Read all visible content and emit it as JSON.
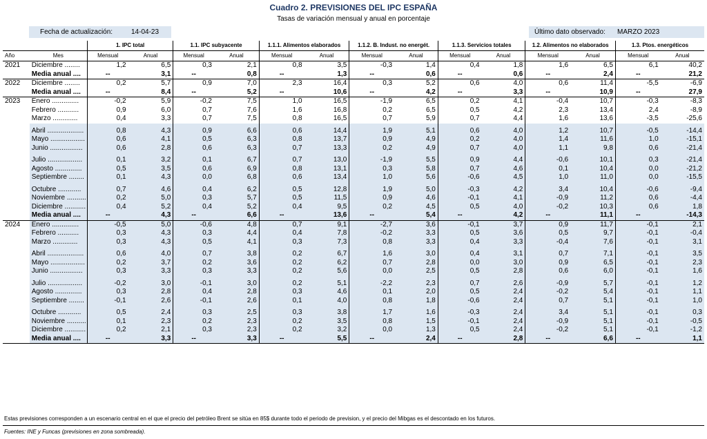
{
  "title": "Cuadro 2. PREVISIONES DEL IPC ESPAÑA",
  "subtitle": "Tasas de variación mensual y anual en porcentaje",
  "update_label": "Fecha de actualización:",
  "update_date": "14-04-23",
  "last_label": "Último dato observado:",
  "last_value": "MARZO 2023",
  "col_year": "Año",
  "col_month": "Mes",
  "sub_mensual": "Mensual",
  "sub_anual": "Anual",
  "groups": [
    "1. IPC total",
    "1.1. IPC subyacente",
    "1.1.1. Alimentos elaborados",
    "1.1.2. B. Indust. no energét.",
    "1.1.3. Servicios totales",
    "1.2. Alimentos no elaborados",
    "1.3. Ptos. energéticos"
  ],
  "blocks": [
    {
      "year": "2021",
      "shade": false,
      "rows": [
        {
          "m": "Diciembre ........",
          "v": [
            "1,2",
            "6,5",
            "0,3",
            "2,1",
            "0,8",
            "3,5",
            "-0,3",
            "1,4",
            "0,4",
            "1,8",
            "1,6",
            "6,5",
            "6,1",
            "40,2"
          ]
        },
        {
          "m": "Media anual ....",
          "bold": true,
          "v": [
            "--",
            "3,1",
            "--",
            "0,8",
            "--",
            "1,3",
            "--",
            "0,6",
            "--",
            "0,6",
            "--",
            "2,4",
            "--",
            "21,2"
          ]
        }
      ]
    },
    {
      "year": "2022",
      "shade": false,
      "rows": [
        {
          "m": "Diciembre ........",
          "v": [
            "0,2",
            "5,7",
            "0,9",
            "7,0",
            "2,3",
            "16,4",
            "0,3",
            "5,2",
            "0,6",
            "4,0",
            "0,6",
            "11,4",
            "-5,5",
            "-6,9"
          ]
        },
        {
          "m": "Media anual ....",
          "bold": true,
          "v": [
            "--",
            "8,4",
            "--",
            "5,2",
            "--",
            "10,6",
            "--",
            "4,2",
            "--",
            "3,3",
            "--",
            "10,9",
            "--",
            "27,9"
          ]
        }
      ]
    },
    {
      "year": "2023",
      "rows": [
        {
          "m": "Enero ..............",
          "v": [
            "-0,2",
            "5,9",
            "-0,2",
            "7,5",
            "1,0",
            "16,5",
            "-1,9",
            "6,5",
            "0,2",
            "4,1",
            "-0,4",
            "10,7",
            "-0,3",
            "-8,3"
          ]
        },
        {
          "m": "Febrero ...........",
          "v": [
            "0,9",
            "6,0",
            "0,7",
            "7,6",
            "1,6",
            "16,8",
            "0,2",
            "6,5",
            "0,5",
            "4,2",
            "2,3",
            "13,4",
            "2,4",
            "-8,9"
          ]
        },
        {
          "m": "Marzo .............",
          "v": [
            "0,4",
            "3,3",
            "0,7",
            "7,5",
            "0,8",
            "16,5",
            "0,7",
            "5,9",
            "0,7",
            "4,4",
            "1,6",
            "13,6",
            "-3,5",
            "-25,6"
          ]
        },
        {
          "gap": true,
          "shade": true
        },
        {
          "m": "Abril ...................",
          "shade": true,
          "v": [
            "0,8",
            "4,3",
            "0,9",
            "6,6",
            "0,6",
            "14,4",
            "1,9",
            "5,1",
            "0,6",
            "4,0",
            "1,2",
            "10,7",
            "-0,5",
            "-14,4"
          ]
        },
        {
          "m": "Mayo ..................",
          "shade": true,
          "v": [
            "0,6",
            "4,1",
            "0,5",
            "6,3",
            "0,8",
            "13,7",
            "0,9",
            "4,9",
            "0,2",
            "4,0",
            "1,4",
            "11,6",
            "1,0",
            "-15,1"
          ]
        },
        {
          "m": "Junio .................",
          "shade": true,
          "v": [
            "0,6",
            "2,8",
            "0,6",
            "6,3",
            "0,7",
            "13,3",
            "0,2",
            "4,9",
            "0,7",
            "4,0",
            "1,1",
            "9,8",
            "0,6",
            "-21,4"
          ]
        },
        {
          "gap": true,
          "shade": true
        },
        {
          "m": "Julio ..................",
          "shade": true,
          "v": [
            "0,1",
            "3,2",
            "0,1",
            "6,7",
            "0,7",
            "13,0",
            "-1,9",
            "5,5",
            "0,9",
            "4,4",
            "-0,6",
            "10,1",
            "0,3",
            "-21,4"
          ]
        },
        {
          "m": "Agosto ..............",
          "shade": true,
          "v": [
            "0,5",
            "3,5",
            "0,6",
            "6,9",
            "0,8",
            "13,1",
            "0,3",
            "5,8",
            "0,7",
            "4,6",
            "0,1",
            "10,4",
            "0,0",
            "-21,2"
          ]
        },
        {
          "m": "Septiembre ........",
          "shade": true,
          "v": [
            "0,1",
            "4,3",
            "0,0",
            "6,8",
            "0,6",
            "13,4",
            "1,0",
            "5,6",
            "-0,6",
            "4,5",
            "1,0",
            "11,0",
            "0,0",
            "-15,5"
          ]
        },
        {
          "gap": true,
          "shade": true
        },
        {
          "m": "Octubre ............",
          "shade": true,
          "v": [
            "0,7",
            "4,6",
            "0,4",
            "6,2",
            "0,5",
            "12,8",
            "1,9",
            "5,0",
            "-0,3",
            "4,2",
            "3,4",
            "10,4",
            "-0,6",
            "-9,4"
          ]
        },
        {
          "m": "Noviembre ..........",
          "shade": true,
          "v": [
            "0,2",
            "5,0",
            "0,3",
            "5,7",
            "0,5",
            "11,5",
            "0,9",
            "4,6",
            "-0,1",
            "4,1",
            "-0,9",
            "11,2",
            "0,6",
            "-4,4"
          ]
        },
        {
          "m": "Diciembre ...........",
          "shade": true,
          "v": [
            "0,4",
            "5,2",
            "0,4",
            "5,2",
            "0,4",
            "9,5",
            "0,2",
            "4,5",
            "0,5",
            "4,0",
            "-0,2",
            "10,3",
            "0,6",
            "1,8"
          ]
        },
        {
          "m": "Media anual ....",
          "shade": true,
          "bold": true,
          "v": [
            "--",
            "4,3",
            "--",
            "6,6",
            "--",
            "13,6",
            "--",
            "5,4",
            "--",
            "4,2",
            "--",
            "11,1",
            "--",
            "-14,3"
          ]
        }
      ]
    },
    {
      "year": "2024",
      "rows": [
        {
          "m": "Enero ..............",
          "shade": true,
          "v": [
            "-0,5",
            "5,0",
            "-0,6",
            "4,8",
            "0,7",
            "9,1",
            "-2,7",
            "3,6",
            "-0,1",
            "3,7",
            "0,9",
            "11,7",
            "-0,1",
            "2,1"
          ]
        },
        {
          "m": "Febrero ...........",
          "shade": true,
          "v": [
            "0,3",
            "4,3",
            "0,3",
            "4,4",
            "0,4",
            "7,8",
            "-0,2",
            "3,3",
            "0,5",
            "3,6",
            "0,5",
            "9,7",
            "-0,1",
            "-0,4"
          ]
        },
        {
          "m": "Marzo .............",
          "shade": true,
          "v": [
            "0,3",
            "4,3",
            "0,5",
            "4,1",
            "0,3",
            "7,3",
            "0,8",
            "3,3",
            "0,4",
            "3,3",
            "-0,4",
            "7,6",
            "-0,1",
            "3,1"
          ]
        },
        {
          "gap": true,
          "shade": true
        },
        {
          "m": "Abril ...................",
          "shade": true,
          "v": [
            "0,6",
            "4,0",
            "0,7",
            "3,8",
            "0,2",
            "6,7",
            "1,6",
            "3,0",
            "0,4",
            "3,1",
            "0,7",
            "7,1",
            "-0,1",
            "3,5"
          ]
        },
        {
          "m": "Mayo ..................",
          "shade": true,
          "v": [
            "0,2",
            "3,7",
            "0,2",
            "3,6",
            "0,2",
            "6,2",
            "0,7",
            "2,8",
            "0,0",
            "3,0",
            "0,9",
            "6,5",
            "-0,1",
            "2,3"
          ]
        },
        {
          "m": "Junio .................",
          "shade": true,
          "v": [
            "0,3",
            "3,3",
            "0,3",
            "3,3",
            "0,2",
            "5,6",
            "0,0",
            "2,5",
            "0,5",
            "2,8",
            "0,6",
            "6,0",
            "-0,1",
            "1,6"
          ]
        },
        {
          "gap": true,
          "shade": true
        },
        {
          "m": "Julio ..................",
          "shade": true,
          "v": [
            "-0,2",
            "3,0",
            "-0,1",
            "3,0",
            "0,2",
            "5,1",
            "-2,2",
            "2,3",
            "0,7",
            "2,6",
            "-0,9",
            "5,7",
            "-0,1",
            "1,2"
          ]
        },
        {
          "m": "Agosto ..............",
          "shade": true,
          "v": [
            "0,3",
            "2,8",
            "0,4",
            "2,8",
            "0,3",
            "4,6",
            "0,1",
            "2,0",
            "0,5",
            "2,4",
            "-0,2",
            "5,4",
            "-0,1",
            "1,1"
          ]
        },
        {
          "m": "Septiembre ........",
          "shade": true,
          "v": [
            "-0,1",
            "2,6",
            "-0,1",
            "2,6",
            "0,1",
            "4,0",
            "0,8",
            "1,8",
            "-0,6",
            "2,4",
            "0,7",
            "5,1",
            "-0,1",
            "1,0"
          ]
        },
        {
          "gap": true,
          "shade": true
        },
        {
          "m": "Octubre ............",
          "shade": true,
          "v": [
            "0,5",
            "2,4",
            "0,3",
            "2,5",
            "0,3",
            "3,8",
            "1,7",
            "1,6",
            "-0,3",
            "2,4",
            "3,4",
            "5,1",
            "-0,1",
            "0,3"
          ]
        },
        {
          "m": "Noviembre ..........",
          "shade": true,
          "v": [
            "0,1",
            "2,3",
            "0,2",
            "2,3",
            "0,2",
            "3,5",
            "0,8",
            "1,5",
            "-0,1",
            "2,4",
            "-0,9",
            "5,1",
            "-0,1",
            "-0,5"
          ]
        },
        {
          "m": "Diciembre ...........",
          "shade": true,
          "v": [
            "0,2",
            "2,1",
            "0,3",
            "2,3",
            "0,2",
            "3,2",
            "0,0",
            "1,3",
            "0,5",
            "2,4",
            "-0,2",
            "5,1",
            "-0,1",
            "-1,2"
          ]
        },
        {
          "m": "Media anual ....",
          "shade": true,
          "bold": true,
          "v": [
            "--",
            "3,3",
            "--",
            "3,3",
            "--",
            "5,5",
            "--",
            "2,4",
            "--",
            "2,8",
            "--",
            "6,6",
            "--",
            "1,1"
          ]
        }
      ]
    }
  ],
  "note": "Estas previsiones corresponden a un escenario central en el que el precio del petróleo Brent se sitúa en 85$ durante todo el periodo de prevision, y el precio del Mibgas es el descontado en los futuros.",
  "source": "Fuentes: INE y Funcas (previsiones en zona sombreada)."
}
